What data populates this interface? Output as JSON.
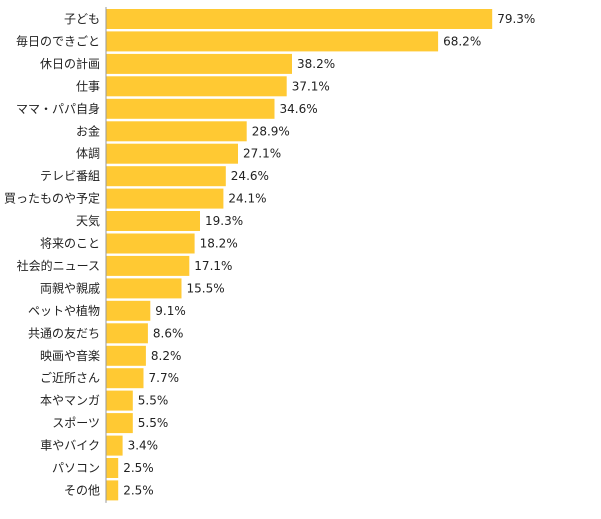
{
  "chart_data": {
    "type": "bar",
    "orientation": "horizontal",
    "bar_color": "#FFC933",
    "axis_color": "#999999",
    "value_suffix": "%",
    "xlim": [
      0,
      100
    ],
    "grid": false,
    "legend": "none",
    "categories": [
      "子ども",
      "毎日のできごと",
      "休日の計画",
      "仕事",
      "ママ・パパ自身",
      "お金",
      "体調",
      "テレビ番組",
      "買ったものや予定",
      "天気",
      "将来のこと",
      "社会的ニュース",
      "両親や親戚",
      "ペットや植物",
      "共通の友だち",
      "映画や音楽",
      "ご近所さん",
      "本やマンガ",
      "スポーツ",
      "車やバイク",
      "パソコン",
      "その他"
    ],
    "values": [
      79.3,
      68.2,
      38.2,
      37.1,
      34.6,
      28.9,
      27.1,
      24.6,
      24.1,
      19.3,
      18.2,
      17.1,
      15.5,
      9.1,
      8.6,
      8.2,
      7.7,
      5.5,
      5.5,
      3.4,
      2.5,
      2.5
    ]
  }
}
